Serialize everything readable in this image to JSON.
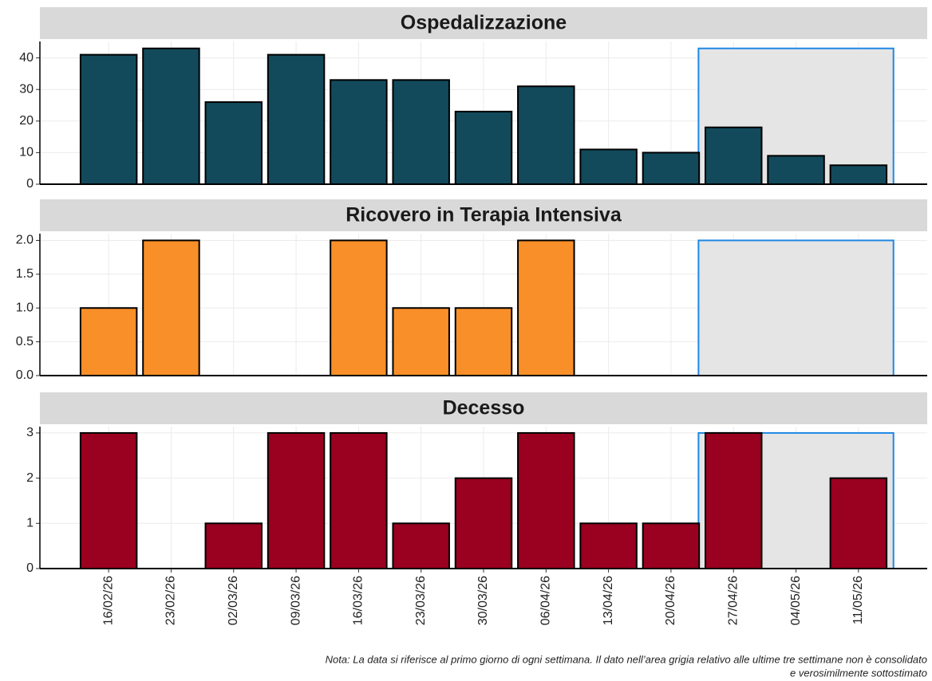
{
  "chart_data": {
    "type": "bar",
    "categories": [
      "16/02/26",
      "23/02/26",
      "02/03/26",
      "09/03/26",
      "16/03/26",
      "23/03/26",
      "30/03/26",
      "06/04/26",
      "13/04/26",
      "20/04/26",
      "27/04/26",
      "04/05/26",
      "11/05/26"
    ],
    "grid": true,
    "shade_last": 3,
    "panels": [
      {
        "title": "Ospedalizzazione",
        "color": "#124a5c",
        "values": [
          41,
          43,
          26,
          41,
          33,
          33,
          23,
          31,
          11,
          10,
          18,
          9,
          6
        ],
        "ylim": [
          0,
          45.2
        ],
        "yticks": [
          0,
          10,
          20,
          30,
          40
        ]
      },
      {
        "title": "Ricovero in Terapia Intensiva",
        "color": "#f88f28",
        "values": [
          1,
          2,
          0,
          0,
          2,
          1,
          1,
          2,
          0,
          0,
          0,
          0,
          0
        ],
        "ylim": [
          0,
          2.1
        ],
        "yticks": [
          {
            "value": 0,
            "label": "0.0"
          },
          {
            "value": 0.5,
            "label": "0.5"
          },
          {
            "value": 1,
            "label": "1.0"
          },
          {
            "value": 1.5,
            "label": "1.5"
          },
          {
            "value": 2,
            "label": "2.0"
          }
        ]
      },
      {
        "title": "Decesso",
        "color": "#9a0020",
        "values": [
          3,
          0,
          1,
          3,
          3,
          1,
          2,
          3,
          1,
          1,
          3,
          0,
          2
        ],
        "ylim": [
          0,
          3.14
        ],
        "yticks": [
          0,
          1,
          2,
          3
        ]
      }
    ],
    "note": [
      "Nota: La data si riferisce al primo giorno di ogni settimana. Il dato nell’area grigia relativo alle ultime tre settimane non è consolidato",
      "e verosimilmente sottostimato"
    ]
  }
}
